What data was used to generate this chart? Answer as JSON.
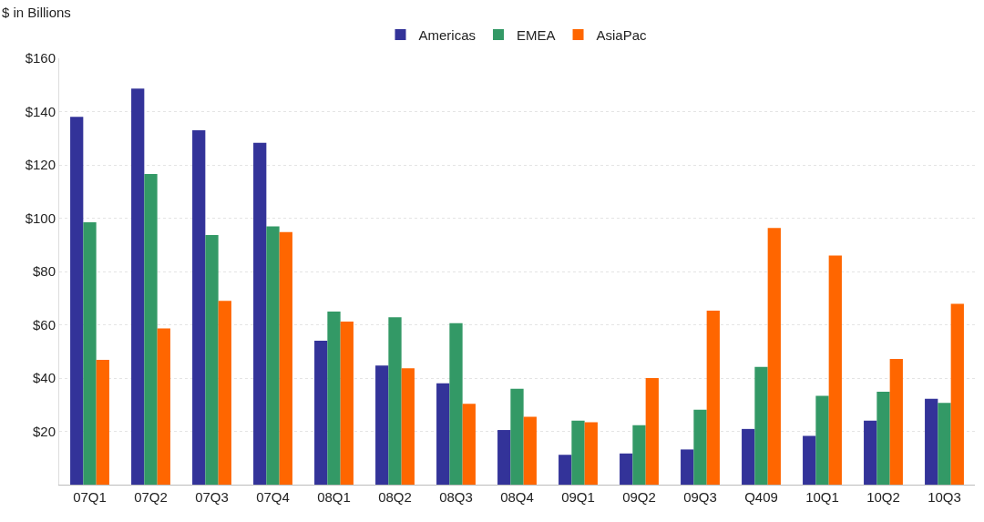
{
  "chart_data": {
    "type": "bar",
    "ylabel": "$ in Billions",
    "categories": [
      "07Q1",
      "07Q2",
      "07Q3",
      "07Q4",
      "08Q1",
      "08Q2",
      "08Q3",
      "08Q4",
      "09Q1",
      "09Q2",
      "09Q3",
      "Q409",
      "10Q1",
      "10Q2",
      "10Q3"
    ],
    "series": [
      {
        "name": "Americas",
        "color": "#333399",
        "values": [
          138,
          148.6,
          133,
          128.3,
          54,
          44.7,
          38,
          20.5,
          11.2,
          11.7,
          13.2,
          20.9,
          18.3,
          24,
          32.2
        ]
      },
      {
        "name": "EMEA",
        "color": "#339966",
        "values": [
          98.5,
          116.6,
          93.7,
          96.9,
          65,
          62.8,
          60.6,
          36,
          24,
          22.3,
          28.1,
          44.2,
          33.3,
          34.9,
          30.7
        ]
      },
      {
        "name": "AsiaPac",
        "color": "#ff6600",
        "values": [
          46.8,
          58.6,
          69,
          94.8,
          61.2,
          43.7,
          30.3,
          25.5,
          23.4,
          40,
          65.3,
          96.3,
          86,
          47.2,
          67.9
        ]
      }
    ],
    "ylim": [
      0,
      160
    ],
    "yticks": [
      {
        "value": 20,
        "label": "$20"
      },
      {
        "value": 40,
        "label": "$40"
      },
      {
        "value": 60,
        "label": "$60"
      },
      {
        "value": 80,
        "label": "$80"
      },
      {
        "value": 100,
        "label": "$100"
      },
      {
        "value": 120,
        "label": "$120"
      },
      {
        "value": 140,
        "label": "$140"
      },
      {
        "value": 160,
        "label": "$160"
      }
    ],
    "grid": "y",
    "legend": "top"
  }
}
